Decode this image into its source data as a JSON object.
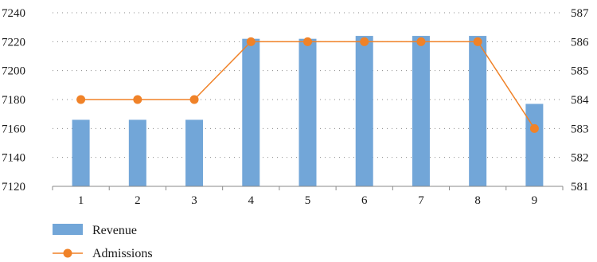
{
  "chart_data": {
    "type": "bar",
    "categories": [
      "1",
      "2",
      "3",
      "4",
      "5",
      "6",
      "7",
      "8",
      "9"
    ],
    "series": [
      {
        "name": "Revenue",
        "type": "bar",
        "axis": "left",
        "color": "#72a6d8",
        "values": [
          7166,
          7166,
          7166,
          7222,
          7222,
          7224,
          7224,
          7224,
          7177
        ]
      },
      {
        "name": "Admissions",
        "type": "line",
        "axis": "right",
        "color": "#f08228",
        "values": [
          584,
          584,
          584,
          586,
          586,
          586,
          586,
          586,
          583
        ]
      }
    ],
    "y_left": {
      "min": 7120,
      "max": 7240,
      "ticks": [
        "7120",
        "7140",
        "7160",
        "7180",
        "7200",
        "7220",
        "7240"
      ]
    },
    "y_right": {
      "min": 581,
      "max": 587,
      "ticks": [
        "581",
        "582",
        "583",
        "584",
        "585",
        "586",
        "587"
      ]
    },
    "grid": "horizontal-dotted",
    "legend_position": "bottom-left",
    "legend": [
      {
        "label": "Revenue",
        "marker": "bar"
      },
      {
        "label": "Admissions",
        "marker": "line-dot"
      }
    ]
  }
}
